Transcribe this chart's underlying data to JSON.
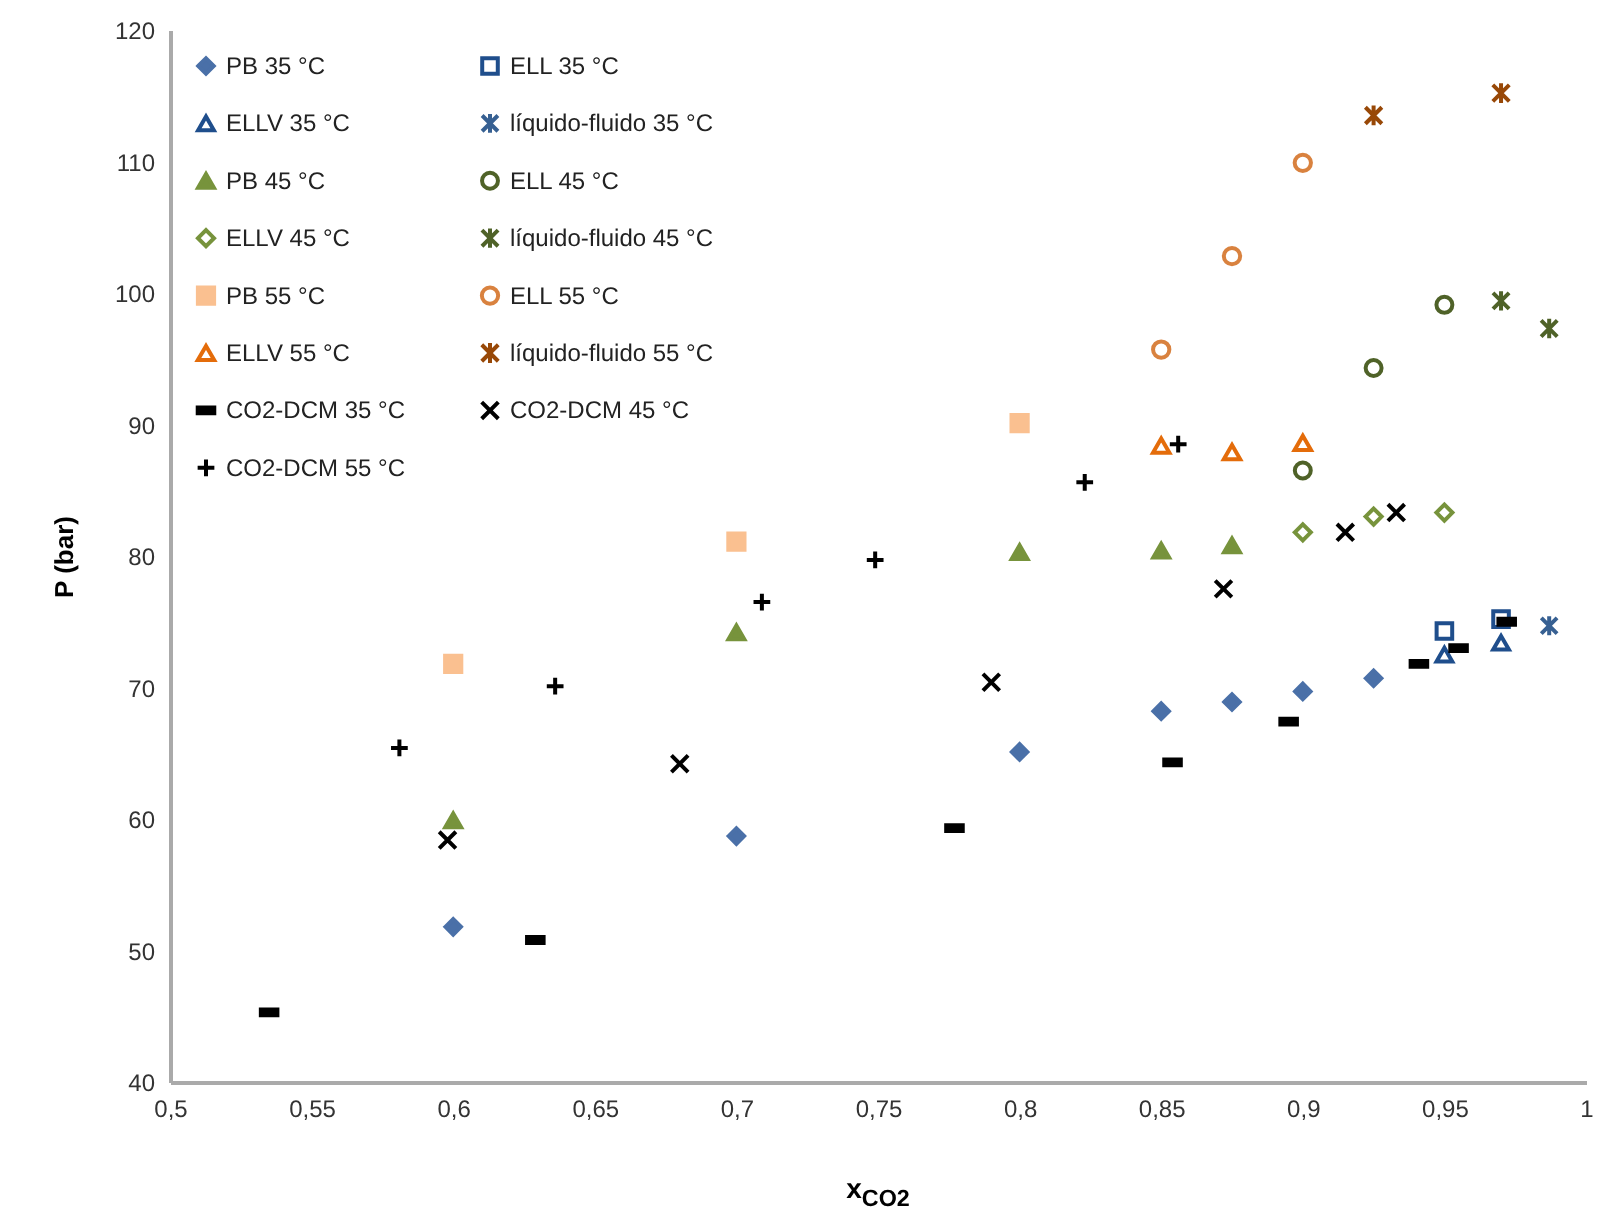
{
  "chart_data": {
    "type": "scatter",
    "xlabel": "x$_{CO2}$",
    "ylabel": "P (bar)",
    "xlim": [
      0.5,
      1
    ],
    "xticks": [
      {
        "value": 0.5,
        "label": "0,5"
      },
      {
        "value": 0.55,
        "label": "0,55"
      },
      {
        "value": 0.6,
        "label": "0,6"
      },
      {
        "value": 0.65,
        "label": "0,65"
      },
      {
        "value": 0.7,
        "label": "0,7"
      },
      {
        "value": 0.75,
        "label": "0,75"
      },
      {
        "value": 0.8,
        "label": "0,8"
      },
      {
        "value": 0.85,
        "label": "0,85"
      },
      {
        "value": 0.9,
        "label": "0,9"
      },
      {
        "value": 0.95,
        "label": "0,95"
      },
      {
        "value": 1,
        "label": "1"
      }
    ],
    "ylim": [
      40,
      120
    ],
    "yticks": [
      40,
      50,
      60,
      70,
      80,
      90,
      100,
      110,
      120
    ],
    "grid": false,
    "legend": "top left",
    "series": [
      {
        "name": "PB 35 °C",
        "color": "#4a70a8",
        "marker": "diamond",
        "x": [
          0.6,
          0.7,
          0.8,
          0.85,
          0.875,
          0.9,
          0.925
        ],
        "values": [
          51.8,
          58.7,
          65.1,
          68.2,
          68.9,
          69.7,
          70.7
        ]
      },
      {
        "name": "ELL 35 °C",
        "color": "#1f4e8c",
        "marker": "square",
        "x": [
          0.95,
          0.97
        ],
        "values": [
          74.3,
          75.2
        ]
      },
      {
        "name": "ELLV 35 °C",
        "color": "#1f4e8c",
        "marker": "triangle",
        "x": [
          0.95,
          0.97
        ],
        "values": [
          72.5,
          73.4
        ]
      },
      {
        "name": "líquido-fluido 35 °C",
        "color": "#376092",
        "marker": "cross",
        "x": [
          0.987
        ],
        "values": [
          74.7
        ]
      },
      {
        "name": "PB 45 °C",
        "color": "#77933c",
        "marker": "triangle",
        "x": [
          0.6,
          0.7,
          0.8,
          0.85,
          0.875
        ],
        "values": [
          59.9,
          74.2,
          80.3,
          80.4,
          80.8
        ]
      },
      {
        "name": "ELL 45 °C",
        "color": "#4f6228",
        "marker": "circle",
        "x": [
          0.9,
          0.925,
          0.95
        ],
        "values": [
          86.5,
          94.3,
          99.1
        ]
      },
      {
        "name": "ELLV 45 °C",
        "color": "#77933c",
        "marker": "diamond",
        "x": [
          0.9,
          0.925,
          0.95
        ],
        "values": [
          81.8,
          83.0,
          83.3
        ]
      },
      {
        "name": "líquido-fluido 45 °C",
        "color": "#4f6228",
        "marker": "cross",
        "x": [
          0.97,
          0.987
        ],
        "values": [
          99.4,
          97.3
        ]
      },
      {
        "name": "PB 55 °C",
        "color": "#fac090",
        "marker": "square",
        "x": [
          0.6,
          0.7,
          0.8
        ],
        "values": [
          71.8,
          81.1,
          90.1
        ]
      },
      {
        "name": "ELL 55 °C",
        "color": "#d9823f",
        "marker": "circle",
        "x": [
          0.85,
          0.875,
          0.9
        ],
        "values": [
          95.7,
          102.8,
          109.9
        ]
      },
      {
        "name": "ELLV 55 °C",
        "color": "#e46c0a",
        "marker": "triangle",
        "x": [
          0.85,
          0.875,
          0.9
        ],
        "values": [
          88.4,
          87.9,
          88.6
        ]
      },
      {
        "name": "líquido-fluido 55 °C",
        "color": "#984807",
        "marker": "cross",
        "x": [
          0.925,
          0.97
        ],
        "values": [
          113.5,
          115.2
        ]
      },
      {
        "name": "CO2-DCM 35 °C",
        "color": "#000000",
        "marker": "square",
        "x": [
          0.535,
          0.629,
          0.777,
          0.854,
          0.895,
          0.941,
          0.955,
          0.972
        ],
        "values": [
          45.3,
          50.8,
          59.3,
          64.3,
          67.4,
          71.8,
          73.0,
          75.0
        ]
      },
      {
        "name": "CO2-DCM 45 °C",
        "color": "#000000",
        "marker": "cross",
        "x": [
          0.598,
          0.68,
          0.79,
          0.872,
          0.915,
          0.933
        ],
        "values": [
          58.4,
          64.2,
          70.4,
          77.5,
          81.8,
          83.3
        ]
      },
      {
        "name": "CO2-DCM 55 °C",
        "color": "#000000",
        "marker": "cross",
        "x": [
          0.581,
          0.636,
          0.709,
          0.749,
          0.823,
          0.856
        ],
        "values": [
          65.4,
          70.1,
          76.5,
          79.7,
          85.6,
          88.5
        ]
      }
    ]
  }
}
